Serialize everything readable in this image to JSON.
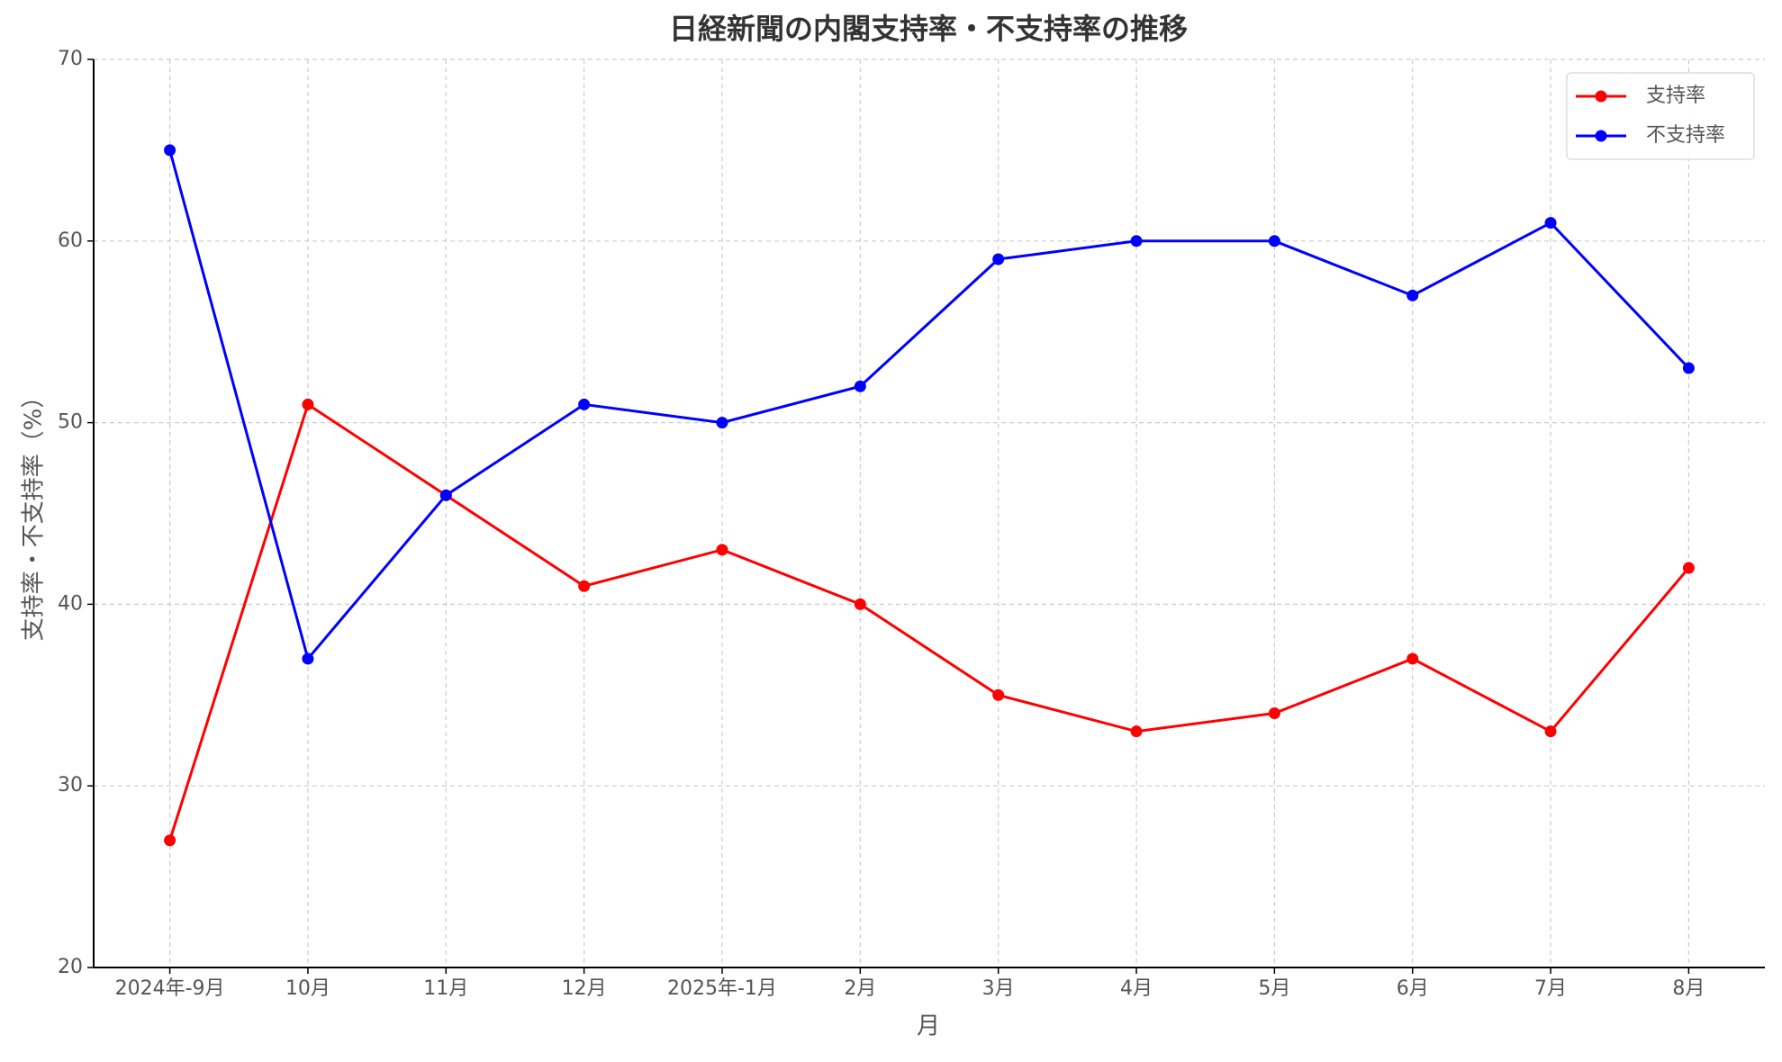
{
  "chart_data": {
    "type": "line",
    "title": "日経新聞の内閣支持率・不支持率の推移",
    "x_label": "月",
    "y_label": "支持率・不支持率（%）",
    "categories": [
      "2024年-9月",
      "10月",
      "11月",
      "12月",
      "2025年-1月",
      "2月",
      "3月",
      "4月",
      "5月",
      "6月",
      "7月",
      "8月"
    ],
    "series": [
      {
        "name": "支持率",
        "color": "#ff0000",
        "values": [
          27,
          51,
          46,
          41,
          43,
          40,
          35,
          33,
          34,
          37,
          33,
          42
        ]
      },
      {
        "name": "不支持率",
        "color": "#0000ff",
        "values": [
          65,
          37,
          46,
          51,
          50,
          52,
          59,
          60,
          60,
          57,
          61,
          53
        ]
      }
    ],
    "ylim": [
      20,
      70
    ],
    "yticks": [
      20,
      30,
      40,
      50,
      60,
      70
    ],
    "grid": true,
    "legend": "upper right"
  }
}
